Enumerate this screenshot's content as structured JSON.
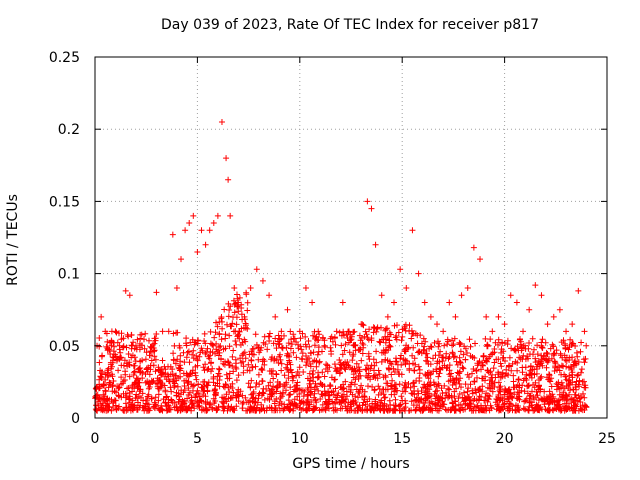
{
  "chart_data": {
    "type": "scatter",
    "title": "Day 039 of 2023, Rate Of TEC Index for receiver p817",
    "xlabel": "GPS time / hours",
    "ylabel": "ROTI / TECUs",
    "xlim": [
      0,
      25
    ],
    "ylim": [
      0,
      0.25
    ],
    "x_ticks": [
      "0",
      "5",
      "10",
      "15",
      "20",
      "25"
    ],
    "y_ticks": [
      "0",
      "0.05",
      "0.1",
      "0.15",
      "0.2",
      "0.25"
    ],
    "grid": true,
    "marker": "plus",
    "color": "#ff0000",
    "x": [
      0.1,
      0.3,
      0.5,
      0.8,
      1.0,
      1.2,
      1.5,
      1.7,
      2.0,
      2.3,
      2.6,
      3.0,
      3.3,
      3.6,
      3.8,
      4.0,
      4.2,
      4.4,
      4.6,
      4.8,
      5.0,
      5.2,
      5.4,
      5.6,
      5.8,
      6.0,
      6.2,
      6.4,
      6.5,
      6.6,
      6.8,
      7.0,
      7.3,
      7.6,
      7.9,
      8.2,
      8.5,
      8.8,
      9.1,
      9.4,
      9.7,
      10.0,
      10.3,
      10.6,
      10.9,
      11.2,
      11.5,
      11.8,
      12.1,
      12.4,
      12.7,
      13.0,
      13.3,
      13.5,
      13.7,
      14.0,
      14.3,
      14.6,
      14.9,
      15.2,
      15.5,
      15.8,
      16.1,
      16.4,
      16.7,
      17.0,
      17.3,
      17.6,
      17.9,
      18.2,
      18.5,
      18.8,
      19.1,
      19.4,
      19.7,
      20.0,
      20.3,
      20.6,
      20.9,
      21.2,
      21.5,
      21.8,
      22.1,
      22.4,
      22.7,
      23.0,
      23.3,
      23.6,
      23.9
    ],
    "y": [
      0.05,
      0.07,
      0.06,
      0.05,
      0.06,
      0.05,
      0.088,
      0.085,
      0.05,
      0.04,
      0.035,
      0.087,
      0.06,
      0.06,
      0.127,
      0.09,
      0.11,
      0.13,
      0.135,
      0.14,
      0.115,
      0.13,
      0.12,
      0.13,
      0.135,
      0.14,
      0.205,
      0.18,
      0.165,
      0.14,
      0.09,
      0.08,
      0.07,
      0.09,
      0.103,
      0.095,
      0.085,
      0.07,
      0.06,
      0.075,
      0.055,
      0.06,
      0.09,
      0.08,
      0.06,
      0.05,
      0.055,
      0.06,
      0.08,
      0.06,
      0.05,
      0.065,
      0.15,
      0.145,
      0.12,
      0.085,
      0.07,
      0.08,
      0.103,
      0.09,
      0.13,
      0.1,
      0.08,
      0.07,
      0.065,
      0.06,
      0.08,
      0.07,
      0.085,
      0.09,
      0.118,
      0.11,
      0.07,
      0.06,
      0.07,
      0.065,
      0.085,
      0.08,
      0.06,
      0.075,
      0.092,
      0.085,
      0.065,
      0.07,
      0.075,
      0.06,
      0.065,
      0.088,
      0.06
    ]
  }
}
